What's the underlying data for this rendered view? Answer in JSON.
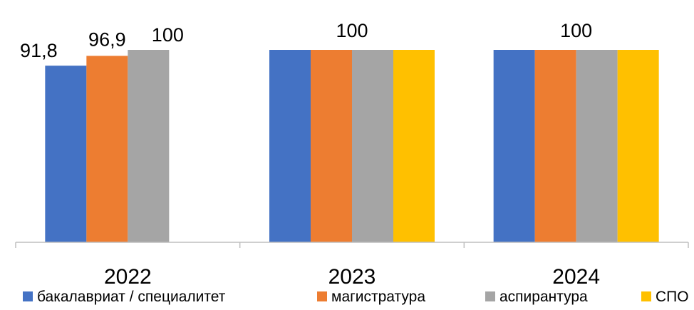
{
  "chart_data": {
    "type": "bar",
    "categories": [
      "2022",
      "2023",
      "2024"
    ],
    "series": [
      {
        "name": "бакалавриат / специалитет",
        "color": "#4472C4",
        "values": [
          91.8,
          100,
          100
        ]
      },
      {
        "name": "магистратура",
        "color": "#ED7D31",
        "values": [
          96.9,
          100,
          100
        ]
      },
      {
        "name": "аспирантура",
        "color": "#A5A5A5",
        "values": [
          100,
          100,
          100
        ]
      },
      {
        "name": "СПО",
        "color": "#FFC000",
        "values": [
          null,
          100,
          100
        ]
      }
    ],
    "data_labels": [
      {
        "category": "2022",
        "series": "бакалавриат / специалитет",
        "text": "91,8"
      },
      {
        "category": "2022",
        "series": "магистратура",
        "text": "96,9"
      },
      {
        "category": "2022",
        "series": "аспирантура",
        "text": "100"
      },
      {
        "category": "2023",
        "text": "100"
      },
      {
        "category": "2024",
        "text": "100"
      }
    ],
    "ylim": [
      0,
      100
    ],
    "grid": false,
    "legend": "bottom"
  }
}
